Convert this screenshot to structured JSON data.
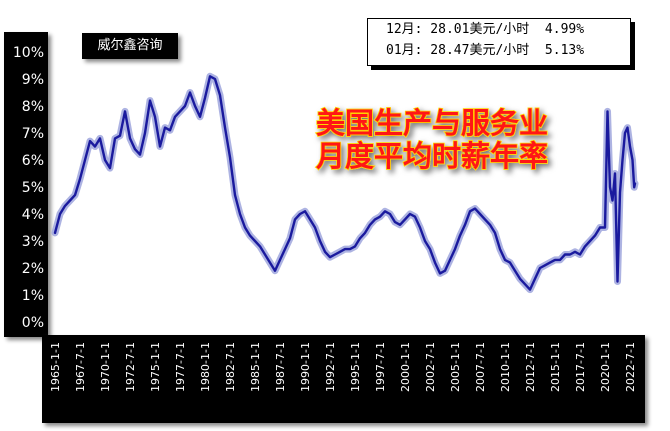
{
  "brand": "威尔鑫咨询",
  "info": {
    "line1": "12月: 28.01美元/小时  4.99%",
    "line2": "01月: 28.47美元/小时  5.13%"
  },
  "colors": {
    "line": "#1a1a9e",
    "title_fill": "#ff1414",
    "title_stroke": "#ffd400"
  },
  "chart_data": {
    "type": "line",
    "title": [
      "美国生产与服务业",
      "月度平均时薪年率"
    ],
    "xlabel": "",
    "ylabel": "",
    "ylim": [
      0,
      10
    ],
    "y_ticks": [
      "0%",
      "1%",
      "2%",
      "3%",
      "4%",
      "5%",
      "6%",
      "7%",
      "8%",
      "9%",
      "10%"
    ],
    "x_range": [
      1965.0,
      2023.1
    ],
    "x_ticks": [
      "1965-1-1",
      "1967-7-1",
      "1970-1-1",
      "1972-7-1",
      "1975-1-1",
      "1977-7-1",
      "1980-1-1",
      "1982-7-1",
      "1985-1-1",
      "1987-7-1",
      "1990-1-1",
      "1992-7-1",
      "1995-1-1",
      "1997-7-1",
      "2000-1-1",
      "2002-7-1",
      "2005-1-1",
      "2007-7-1",
      "2010-1-1",
      "2012-7-1",
      "2015-1-1",
      "2017-7-1",
      "2020-1-1",
      "2022-7-1"
    ],
    "grid": false,
    "series": [
      {
        "values": [
          [
            1965.0,
            3.3
          ],
          [
            1965.5,
            4.0
          ],
          [
            1966.0,
            4.3
          ],
          [
            1966.5,
            4.5
          ],
          [
            1967.0,
            4.7
          ],
          [
            1967.5,
            5.3
          ],
          [
            1968.0,
            6.0
          ],
          [
            1968.5,
            6.7
          ],
          [
            1969.0,
            6.5
          ],
          [
            1969.5,
            6.8
          ],
          [
            1970.0,
            6.0
          ],
          [
            1970.5,
            5.7
          ],
          [
            1971.0,
            6.8
          ],
          [
            1971.5,
            6.9
          ],
          [
            1972.0,
            7.8
          ],
          [
            1972.5,
            6.8
          ],
          [
            1973.0,
            6.4
          ],
          [
            1973.5,
            6.2
          ],
          [
            1974.0,
            7.0
          ],
          [
            1974.5,
            8.2
          ],
          [
            1975.0,
            7.6
          ],
          [
            1975.5,
            6.5
          ],
          [
            1976.0,
            7.2
          ],
          [
            1976.5,
            7.1
          ],
          [
            1977.0,
            7.6
          ],
          [
            1977.5,
            7.8
          ],
          [
            1978.0,
            8.0
          ],
          [
            1978.5,
            8.5
          ],
          [
            1979.0,
            8.0
          ],
          [
            1979.5,
            7.6
          ],
          [
            1980.0,
            8.3
          ],
          [
            1980.5,
            9.1
          ],
          [
            1981.0,
            9.0
          ],
          [
            1981.5,
            8.4
          ],
          [
            1982.0,
            7.2
          ],
          [
            1982.5,
            6.1
          ],
          [
            1983.0,
            4.7
          ],
          [
            1983.5,
            4.0
          ],
          [
            1984.0,
            3.5
          ],
          [
            1984.5,
            3.2
          ],
          [
            1985.0,
            3.0
          ],
          [
            1985.5,
            2.8
          ],
          [
            1986.0,
            2.5
          ],
          [
            1986.5,
            2.2
          ],
          [
            1987.0,
            1.9
          ],
          [
            1987.5,
            2.3
          ],
          [
            1988.0,
            2.7
          ],
          [
            1988.5,
            3.1
          ],
          [
            1989.0,
            3.8
          ],
          [
            1989.5,
            4.0
          ],
          [
            1990.0,
            4.1
          ],
          [
            1990.5,
            3.8
          ],
          [
            1991.0,
            3.5
          ],
          [
            1991.5,
            3.0
          ],
          [
            1992.0,
            2.6
          ],
          [
            1992.5,
            2.4
          ],
          [
            1993.0,
            2.5
          ],
          [
            1993.5,
            2.6
          ],
          [
            1994.0,
            2.7
          ],
          [
            1994.5,
            2.7
          ],
          [
            1995.0,
            2.8
          ],
          [
            1995.5,
            3.1
          ],
          [
            1996.0,
            3.3
          ],
          [
            1996.5,
            3.6
          ],
          [
            1997.0,
            3.8
          ],
          [
            1997.5,
            3.9
          ],
          [
            1998.0,
            4.1
          ],
          [
            1998.5,
            4.0
          ],
          [
            1999.0,
            3.7
          ],
          [
            1999.5,
            3.6
          ],
          [
            2000.0,
            3.8
          ],
          [
            2000.5,
            4.0
          ],
          [
            2001.0,
            3.9
          ],
          [
            2001.5,
            3.5
          ],
          [
            2002.0,
            3.0
          ],
          [
            2002.5,
            2.7
          ],
          [
            2003.0,
            2.2
          ],
          [
            2003.5,
            1.8
          ],
          [
            2004.0,
            1.9
          ],
          [
            2004.5,
            2.3
          ],
          [
            2005.0,
            2.7
          ],
          [
            2005.5,
            3.2
          ],
          [
            2006.0,
            3.6
          ],
          [
            2006.5,
            4.1
          ],
          [
            2007.0,
            4.2
          ],
          [
            2007.5,
            4.0
          ],
          [
            2008.0,
            3.8
          ],
          [
            2008.5,
            3.6
          ],
          [
            2009.0,
            3.3
          ],
          [
            2009.5,
            2.7
          ],
          [
            2010.0,
            2.3
          ],
          [
            2010.5,
            2.2
          ],
          [
            2011.0,
            1.9
          ],
          [
            2011.5,
            1.6
          ],
          [
            2012.0,
            1.4
          ],
          [
            2012.5,
            1.2
          ],
          [
            2013.0,
            1.6
          ],
          [
            2013.5,
            2.0
          ],
          [
            2014.0,
            2.1
          ],
          [
            2014.5,
            2.2
          ],
          [
            2015.0,
            2.3
          ],
          [
            2015.5,
            2.3
          ],
          [
            2016.0,
            2.5
          ],
          [
            2016.5,
            2.5
          ],
          [
            2017.0,
            2.6
          ],
          [
            2017.5,
            2.5
          ],
          [
            2018.0,
            2.8
          ],
          [
            2018.5,
            3.0
          ],
          [
            2019.0,
            3.2
          ],
          [
            2019.5,
            3.5
          ],
          [
            2020.0,
            3.5
          ],
          [
            2020.25,
            7.8
          ],
          [
            2020.5,
            5.0
          ],
          [
            2020.75,
            4.5
          ],
          [
            2021.0,
            5.5
          ],
          [
            2021.25,
            1.5
          ],
          [
            2021.5,
            4.8
          ],
          [
            2021.75,
            6.0
          ],
          [
            2022.0,
            7.0
          ],
          [
            2022.25,
            7.2
          ],
          [
            2022.5,
            6.5
          ],
          [
            2022.75,
            6.0
          ],
          [
            2022.92,
            4.99
          ],
          [
            2023.0,
            5.13
          ]
        ]
      }
    ]
  }
}
